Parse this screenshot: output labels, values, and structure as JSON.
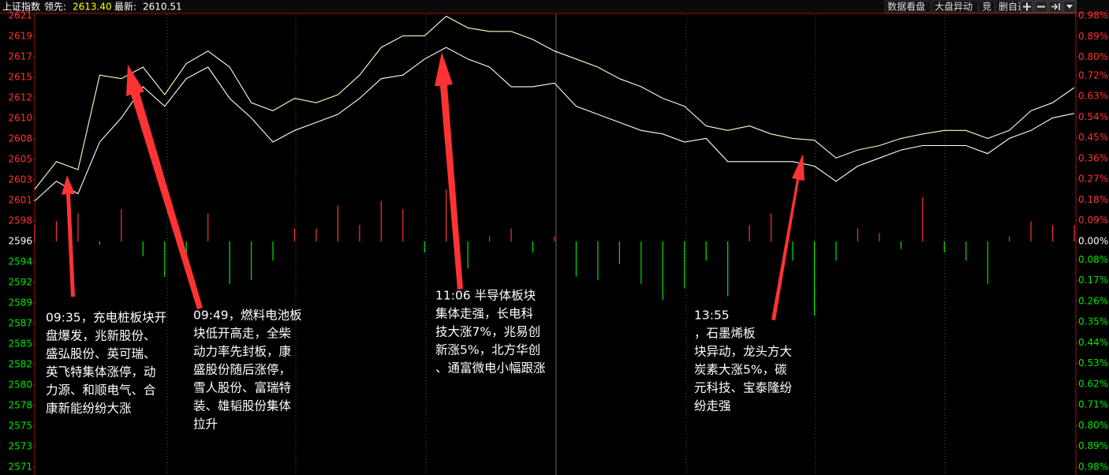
{
  "header": {
    "name": "上证指数",
    "lead_label": "领先:",
    "lead": "2613.40",
    "last_label": "最新:",
    "last": "2610.51"
  },
  "toolbar": [
    "数据看盘",
    "大盘异动",
    "竞",
    "删自选"
  ],
  "chart_data": {
    "type": "line",
    "up_color": "#ff3232",
    "down_color": "#00e600",
    "grid": false,
    "series": [
      {
        "color": "#ffffcc",
        "values": [
          2602.0,
          2605.1,
          2604.2,
          2614.8,
          2614.4,
          2615.7,
          2612.6,
          2616.1,
          2617.5,
          2615.7,
          2611.7,
          2610.8,
          2612.2,
          2611.7,
          2612.6,
          2614.8,
          2617.9,
          2619.2,
          2619.2,
          2621.4,
          2620.1,
          2619.7,
          2619.7,
          2618.8,
          2617.5,
          2616.6,
          2615.7,
          2614.4,
          2613.5,
          2612.2,
          2611.3,
          2609.1,
          2608.6,
          2609.1,
          2608.2,
          2607.7,
          2607.5,
          2605.5,
          2606.4,
          2606.9,
          2607.7,
          2608.2,
          2608.6,
          2608.6,
          2607.7,
          2608.6,
          2610.8,
          2611.7,
          2613.4
        ]
      },
      {
        "color": "#ffffff",
        "values": [
          2600.7,
          2602.9,
          2601.5,
          2607.3,
          2610.0,
          2613.5,
          2611.3,
          2614.4,
          2615.7,
          2612.2,
          2610.0,
          2607.3,
          2608.6,
          2609.5,
          2610.4,
          2612.2,
          2614.4,
          2614.8,
          2616.6,
          2617.9,
          2616.6,
          2615.7,
          2613.5,
          2613.5,
          2613.9,
          2611.3,
          2610.4,
          2609.5,
          2608.6,
          2608.2,
          2607.3,
          2607.7,
          2605.1,
          2605.1,
          2605.1,
          2605.1,
          2604.6,
          2602.9,
          2604.6,
          2605.5,
          2606.4,
          2606.9,
          2606.9,
          2606.9,
          2606.0,
          2607.7,
          2608.6,
          2610.0,
          2610.51
        ]
      }
    ],
    "bars": [
      2598.0,
      2598.4,
      2599.3,
      2595.8,
      2599.8,
      2594.5,
      2592.2,
      2593.1,
      2599.3,
      2591.4,
      2591.8,
      2594.0,
      2597.6,
      2597.6,
      2600.2,
      2598.0,
      2600.7,
      2599.8,
      2594.9,
      2602.0,
      2593.1,
      2596.7,
      2597.6,
      2594.9,
      2596.7,
      2592.2,
      2591.8,
      2593.6,
      2591.4,
      2589.6,
      2590.9,
      2594.0,
      2590.0,
      2598.0,
      2599.3,
      2594.0,
      2587.8,
      2594.0,
      2597.6,
      2597.1,
      2595.3,
      2601.1,
      2594.9,
      2594.0,
      2591.4,
      2596.7,
      2598.4,
      2598.0,
      2598.0
    ],
    "ylim": [
      2570.85,
      2621.45
    ],
    "yticks": [
      {
        "value": 2621.45,
        "label": "2621"
      },
      {
        "value": 2619.15,
        "label": "2619"
      },
      {
        "value": 2616.85,
        "label": "2617"
      },
      {
        "value": 2614.55,
        "label": "2615"
      },
      {
        "value": 2612.25,
        "label": "2612"
      },
      {
        "value": 2609.95,
        "label": "2610"
      },
      {
        "value": 2607.65,
        "label": "2608"
      },
      {
        "value": 2605.35,
        "label": "2605"
      },
      {
        "value": 2603.05,
        "label": "2603"
      },
      {
        "value": 2600.75,
        "label": "2601"
      },
      {
        "value": 2598.45,
        "label": "2598"
      },
      {
        "value": 2596.15,
        "label": "2596"
      },
      {
        "value": 2593.85,
        "label": "2594"
      },
      {
        "value": 2591.55,
        "label": "2592"
      },
      {
        "value": 2589.25,
        "label": "2589"
      },
      {
        "value": 2586.95,
        "label": "2587"
      },
      {
        "value": 2584.65,
        "label": "2585"
      },
      {
        "value": 2582.35,
        "label": "2582"
      },
      {
        "value": 2580.05,
        "label": "2580"
      },
      {
        "value": 2577.75,
        "label": "2578"
      },
      {
        "value": 2575.45,
        "label": "2575"
      },
      {
        "value": 2573.15,
        "label": "2573"
      },
      {
        "value": 2570.85,
        "label": "2571"
      }
    ],
    "y2lim": [
      -0.98,
      0.98
    ],
    "y2ticks": [
      {
        "value": 0.98,
        "label": "0.98%"
      },
      {
        "value": 0.89,
        "label": "0.89%"
      },
      {
        "value": 0.8,
        "label": "0.80%"
      },
      {
        "value": 0.72,
        "label": "0.72%"
      },
      {
        "value": 0.63,
        "label": "0.63%"
      },
      {
        "value": 0.54,
        "label": "0.54%"
      },
      {
        "value": 0.45,
        "label": "0.45%"
      },
      {
        "value": 0.36,
        "label": "0.36%"
      },
      {
        "value": 0.27,
        "label": "0.27%"
      },
      {
        "value": 0.18,
        "label": "0.18%"
      },
      {
        "value": 0.09,
        "label": "0.09%"
      },
      {
        "value": 0,
        "label": "0.00%"
      },
      {
        "value": -0.08,
        "label": "0.08%"
      },
      {
        "value": -0.17,
        "label": "0.17%"
      },
      {
        "value": -0.26,
        "label": "0.26%"
      },
      {
        "value": -0.35,
        "label": "0.35%"
      },
      {
        "value": -0.44,
        "label": "0.44%"
      },
      {
        "value": -0.53,
        "label": "0.53%"
      },
      {
        "value": -0.62,
        "label": "0.62%"
      },
      {
        "value": -0.71,
        "label": "0.71%"
      },
      {
        "value": -0.8,
        "label": "0.80%"
      },
      {
        "value": -0.89,
        "label": "0.89%"
      },
      {
        "value": -0.98,
        "label": "0.98%"
      }
    ],
    "annotations": [
      {
        "lines": [
          "09:35，充电桩板块开",
          "盘爆发，兆新股份、",
          "盛弘股份、英可瑞、",
          "英飞特集体涨停，动",
          "力源、和顺电气、合",
          "康新能纷纷大涨"
        ]
      },
      {
        "lines": [
          "09:49，燃料电池板",
          "块低开高走，全柴",
          "动力率先封板，康",
          "盛股份随后涨停，",
          "雪人股份、富瑞特",
          "装、雄韬股份集体",
          "拉升"
        ]
      },
      {
        "lines": [
          "11:06 半导体板块",
          "集体走强，长电科",
          "技大涨7%，兆易创",
          "新涨5%，北方华创",
          "、通富微电小幅跟涨"
        ]
      },
      {
        "lines": [
          "13:55",
          "，石墨烯板",
          "块异动，龙头方大",
          "炭素大涨5%，碳",
          "元科技、宝泰隆纷",
          "纷走强"
        ]
      }
    ]
  }
}
